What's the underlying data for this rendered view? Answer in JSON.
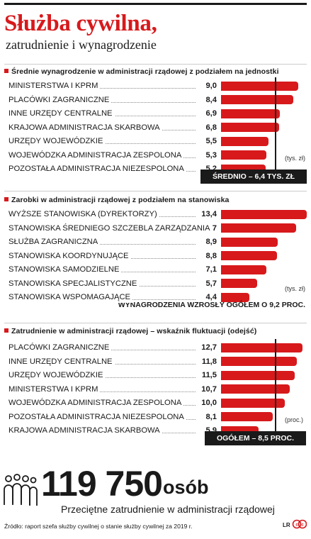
{
  "header": {
    "title": "Służba cywilna,",
    "subtitle": "zatrudnienie i wynagrodzenie"
  },
  "colors": {
    "accent": "#d7191c",
    "dark": "#1a1a1a"
  },
  "chart_data": [
    {
      "type": "bar",
      "orientation": "horizontal",
      "title": "Średnie wynagrodzenie w administracji rządowej  z podziałem na jednostki",
      "unit": "(tys. zł)",
      "categories": [
        "MINISTERSTWA I KPRM",
        "PLACÓWKI ZAGRANICZNE",
        "INNE URZĘDY CENTRALNE",
        "KRAJOWA ADMINISTRACJA SKARBOWA",
        "URZĘDY WOJEWÓDZKIE",
        "WOJEWÓDZKA ADMINISTRACJA ZESPOLONA",
        "POZOSTAŁA ADMINISTRACJA NIEZESPOLONA"
      ],
      "values": [
        9.0,
        8.4,
        6.9,
        6.8,
        5.5,
        5.3,
        5.2
      ],
      "value_labels": [
        "9,0",
        "8,4",
        "6,9",
        "6,8",
        "5,5",
        "5,3",
        "5,2"
      ],
      "reference_value": 6.4,
      "reference_label": "ŚREDNIO – 6,4 TYS. ZŁ",
      "xlim": [
        0,
        10
      ]
    },
    {
      "type": "bar",
      "orientation": "horizontal",
      "title": "Zarobki w administracji rządowej z podziałem na stanowiska",
      "unit": "(tys. zł)",
      "categories": [
        "WYŻSZE STANOWISKA (DYREKTORZY)",
        "STANOWISKA ŚREDNIEGO SZCZEBLA ZARZĄDZANIA",
        "SŁUŻBA ZAGRANICZNA",
        "STANOWISKA KOORDYNUJĄCE",
        "STANOWISKA SAMODZIELNE",
        "STANOWISKA SPECJALISTYCZNE",
        "STANOWISKA WSPOMAGAJĄCE"
      ],
      "values": [
        13.4,
        11.7,
        8.9,
        8.8,
        7.1,
        5.7,
        4.4
      ],
      "value_labels": [
        "13,4",
        "11,7",
        "8,9",
        "8,8",
        "7,1",
        "5,7",
        "4,4"
      ],
      "note": "WYNAGRODZENIA WZROSŁY OGÓŁEM O 9,2 PROC.",
      "xlim": [
        0,
        13.4
      ]
    },
    {
      "type": "bar",
      "orientation": "horizontal",
      "title": "Zatrudnienie w administracji rządowej – wskaźnik fluktuacji (odejść)",
      "unit": "(proc.)",
      "categories": [
        "PLACÓWKI ZAGRANICZNE",
        "INNE URZĘDY CENTRALNE",
        "URZĘDY WOJEWÓDZKIE",
        "MINISTERSTWA I KPRM",
        "WOJEWÓDZKA ADMINISTRACJA ZESPOLONA",
        "POZOSTAŁA ADMINISTRACJA NIEZESPOLONA",
        "KRAJOWA ADMINISTRACJA SKARBOWA"
      ],
      "values": [
        12.7,
        11.8,
        11.5,
        10.7,
        10.0,
        8.1,
        5.9
      ],
      "value_labels": [
        "12,7",
        "11,8",
        "11,5",
        "10,7",
        "10,0",
        "8,1",
        "5,9"
      ],
      "reference_value": 8.5,
      "reference_label": "OGÓŁEM – 8,5 PROC.",
      "xlim": [
        0,
        13.4
      ]
    }
  ],
  "summary": {
    "number": "119 750",
    "unit": "osób",
    "description": "Przeciętne zatrudnienie w administracji rządowej"
  },
  "source": "Źródło: raport szefa służby cywilnej o stanie służby cywilnej za 2019 r.",
  "logo": {
    "letters": "LR",
    "icon": "cc-by-icon"
  }
}
